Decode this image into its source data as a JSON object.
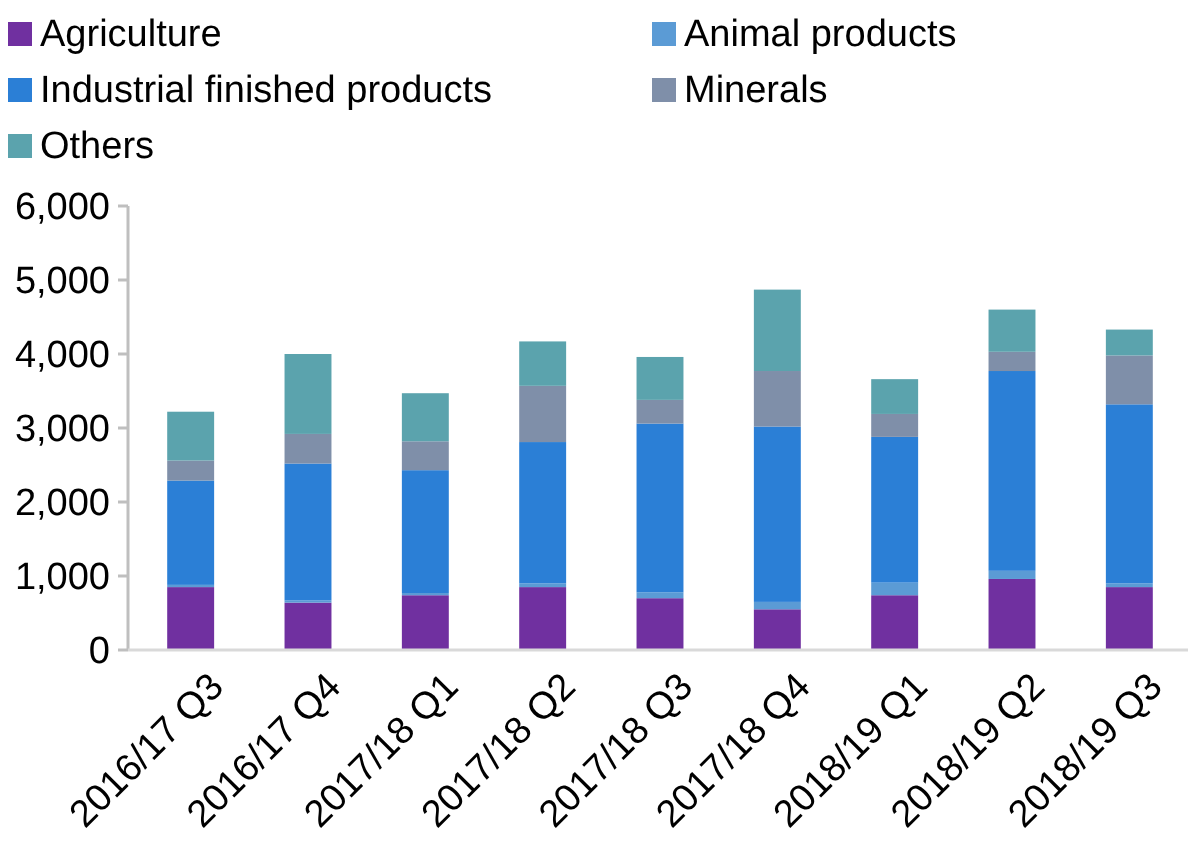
{
  "chart_data": {
    "type": "bar",
    "stacked": true,
    "categories": [
      "2016/17 Q3",
      "2016/17 Q4",
      "2017/18 Q1",
      "2017/18 Q2",
      "2017/18 Q3",
      "2017/18 Q4",
      "2018/19 Q1",
      "2018/19 Q2",
      "2018/19 Q3"
    ],
    "series": [
      {
        "name": "Agriculture",
        "color": "#7030a0",
        "values": [
          850,
          640,
          740,
          850,
          700,
          550,
          740,
          960,
          850
        ]
      },
      {
        "name": "Animal products",
        "color": "#5b9bd5",
        "values": [
          30,
          30,
          30,
          50,
          80,
          100,
          170,
          110,
          50
        ]
      },
      {
        "name": "Industrial finished products",
        "color": "#2b7fd6",
        "values": [
          1410,
          1850,
          1660,
          1910,
          2280,
          2370,
          1970,
          2700,
          2420
        ]
      },
      {
        "name": "Minerals",
        "color": "#7f8fa9",
        "values": [
          270,
          400,
          390,
          760,
          320,
          750,
          310,
          260,
          660
        ]
      },
      {
        "name": "Others",
        "color": "#5ba3ad",
        "values": [
          660,
          1080,
          650,
          600,
          580,
          1100,
          470,
          570,
          350
        ]
      }
    ],
    "ylim": [
      0,
      6000
    ],
    "yticks": [
      {
        "value": 0,
        "label": "0"
      },
      {
        "value": 1000,
        "label": "1,000"
      },
      {
        "value": 2000,
        "label": "2,000"
      },
      {
        "value": 3000,
        "label": "3,000"
      },
      {
        "value": 4000,
        "label": "4,000"
      },
      {
        "value": 5000,
        "label": "5,000"
      },
      {
        "value": 6000,
        "label": "6,000"
      }
    ],
    "legend": "top",
    "grid": false
  }
}
